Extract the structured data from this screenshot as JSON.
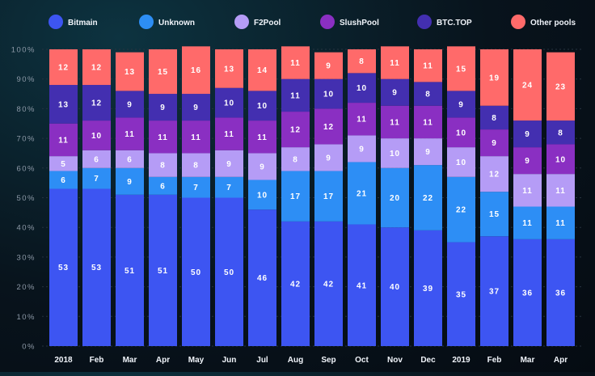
{
  "chart_data": {
    "type": "bar",
    "stacked": true,
    "categories": [
      "2018",
      "Feb",
      "Mar",
      "Apr",
      "May",
      "Jun",
      "Jul",
      "Aug",
      "Sep",
      "Oct",
      "Nov",
      "Dec",
      "2019",
      "Feb",
      "Mar",
      "Apr"
    ],
    "ylim": [
      0,
      100
    ],
    "yticks": [
      "0%",
      "10%",
      "20%",
      "30%",
      "40%",
      "50%",
      "60%",
      "70%",
      "80%",
      "90%",
      "100%"
    ],
    "legend_position": "top",
    "series": [
      {
        "name": "Bitmain",
        "color": "#3d55f2",
        "values": [
          53,
          53,
          51,
          51,
          50,
          50,
          46,
          42,
          42,
          41,
          40,
          39,
          35,
          37,
          36,
          36
        ]
      },
      {
        "name": "Unknown",
        "color": "#2d8ef5",
        "values": [
          6,
          7,
          9,
          6,
          7,
          7,
          10,
          17,
          17,
          21,
          20,
          22,
          22,
          15,
          11,
          11
        ]
      },
      {
        "name": "F2Pool",
        "color": "#b59cf6",
        "values": [
          5,
          6,
          6,
          8,
          8,
          9,
          9,
          8,
          9,
          9,
          10,
          9,
          10,
          12,
          11,
          11
        ]
      },
      {
        "name": "SlushPool",
        "color": "#8a2fc2",
        "values": [
          11,
          10,
          11,
          11,
          11,
          11,
          11,
          12,
          12,
          11,
          11,
          11,
          10,
          9,
          9,
          10
        ]
      },
      {
        "name": "BTC.TOP",
        "color": "#432fb0",
        "values": [
          13,
          12,
          9,
          9,
          9,
          10,
          10,
          11,
          10,
          10,
          9,
          8,
          9,
          8,
          9,
          8
        ]
      },
      {
        "name": "Other pools",
        "color": "#ff6a6a",
        "values": [
          12,
          12,
          13,
          15,
          16,
          13,
          14,
          11,
          9,
          8,
          11,
          11,
          15,
          19,
          24,
          23
        ]
      }
    ]
  }
}
